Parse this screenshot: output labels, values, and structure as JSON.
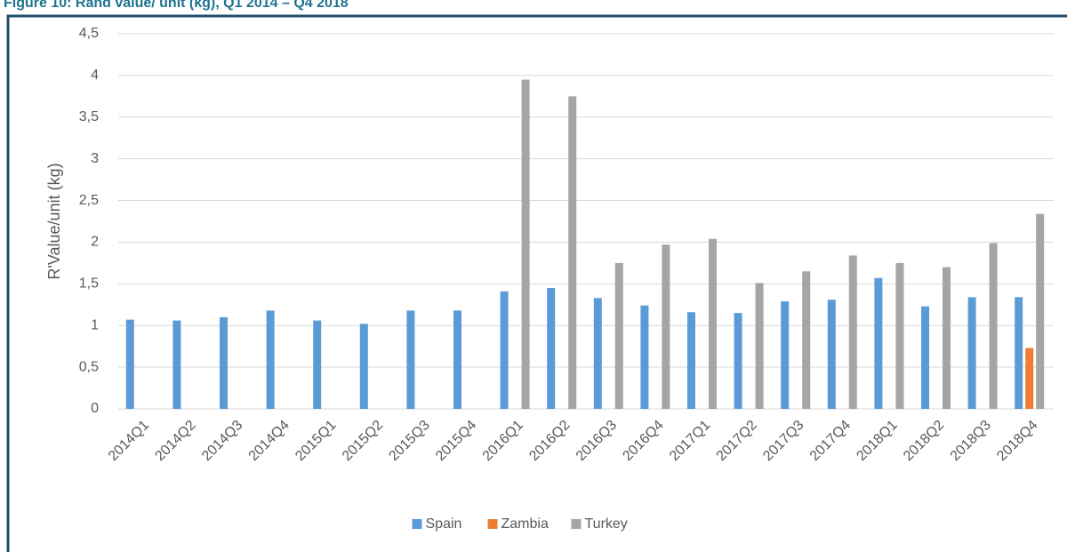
{
  "chart_data": {
    "type": "bar",
    "title": "Figure 10: Rand value/ unit (kg), Q1 2014 – Q4 2018",
    "y_label": "R'Value/unit (kg)",
    "categories": [
      "2014Q1",
      "2014Q2",
      "2014Q3",
      "2014Q4",
      "2015Q1",
      "2015Q2",
      "2015Q3",
      "2015Q4",
      "2016Q1",
      "2016Q2",
      "2016Q3",
      "2016Q4",
      "2017Q1",
      "2017Q2",
      "2017Q3",
      "2017Q4",
      "2018Q1",
      "2018Q2",
      "2018Q3",
      "2018Q4"
    ],
    "series": [
      {
        "name": "Spain",
        "color": "#5b9bd5",
        "values": [
          1.07,
          1.06,
          1.1,
          1.18,
          1.06,
          1.02,
          1.18,
          1.18,
          1.41,
          1.45,
          1.33,
          1.24,
          1.16,
          1.15,
          1.29,
          1.31,
          1.57,
          1.23,
          1.34,
          1.34
        ]
      },
      {
        "name": "Zambia",
        "color": "#ed7d31",
        "values": [
          null,
          null,
          null,
          null,
          null,
          null,
          null,
          null,
          null,
          null,
          null,
          null,
          null,
          null,
          null,
          null,
          null,
          null,
          null,
          0.73
        ]
      },
      {
        "name": "Turkey",
        "color": "#a5a5a5",
        "values": [
          null,
          null,
          null,
          null,
          null,
          null,
          null,
          null,
          3.95,
          3.75,
          1.75,
          1.97,
          2.04,
          1.51,
          1.65,
          1.84,
          1.75,
          1.7,
          1.99,
          2.34
        ]
      }
    ],
    "ylim": [
      0,
      4.5
    ],
    "yticks": [
      0,
      {
        "value": 0.5,
        "label": "0,5"
      },
      1,
      {
        "value": 1.5,
        "label": "1,5"
      },
      2,
      {
        "value": 2.5,
        "label": "2,5"
      },
      3,
      {
        "value": 3.5,
        "label": "3,5"
      },
      4,
      {
        "value": 4.5,
        "label": "4,5"
      }
    ],
    "grid": true,
    "legend": "bottom"
  }
}
